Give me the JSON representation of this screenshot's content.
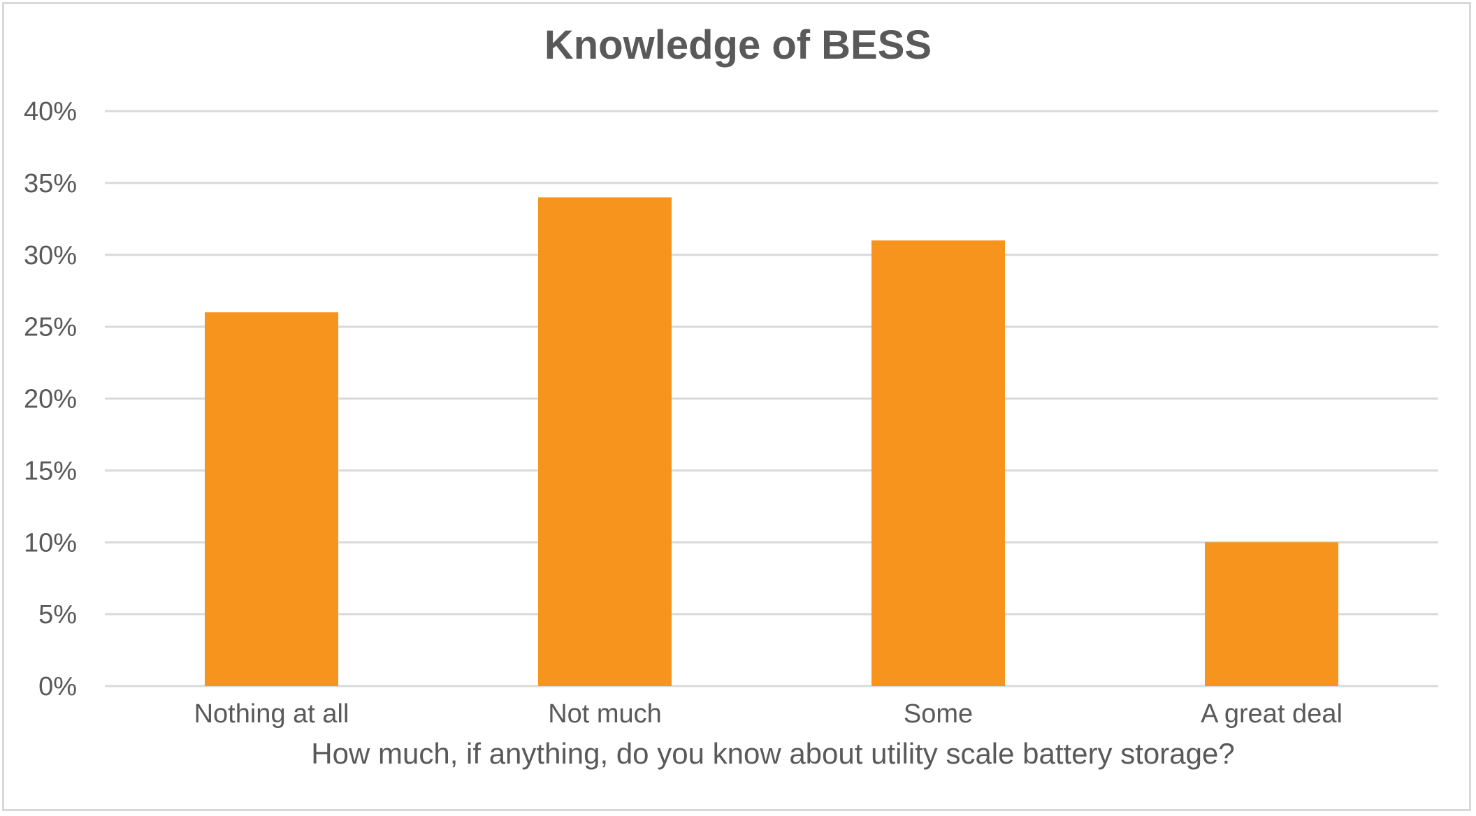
{
  "chart_data": {
    "type": "bar",
    "title": "Knowledge of BESS",
    "xlabel": "How much, if anything, do you know about utility scale battery storage?",
    "ylabel": "",
    "categories": [
      "Nothing at all",
      "Not much",
      "Some",
      "A great deal"
    ],
    "values": [
      26,
      34,
      31,
      10
    ],
    "unit": "%",
    "ylim": [
      0,
      40
    ],
    "ytick_labels": [
      "0%",
      "5%",
      "10%",
      "15%",
      "20%",
      "25%",
      "30%",
      "35%",
      "40%"
    ],
    "grid": true,
    "legend": "none",
    "colors": {
      "bar": "#F7941D",
      "grid": "#d9d9d9",
      "text": "#595959",
      "border": "#d9d9d9"
    }
  }
}
